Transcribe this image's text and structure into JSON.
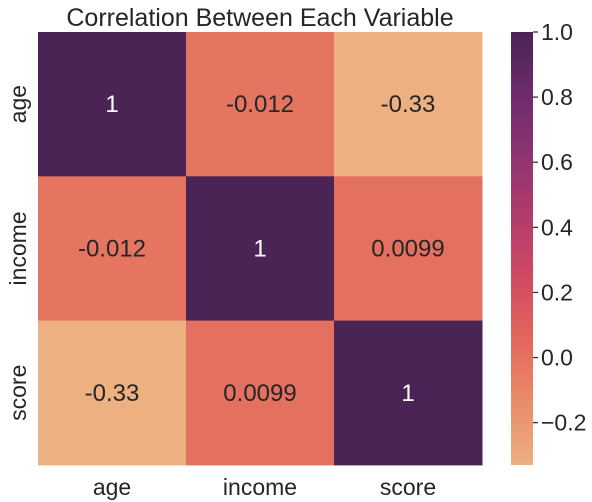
{
  "chart_data": {
    "type": "heatmap",
    "title": "Correlation Between Each Variable",
    "x_labels": [
      "age",
      "income",
      "score"
    ],
    "y_labels": [
      "age",
      "income",
      "score"
    ],
    "values": [
      [
        1,
        -0.012,
        -0.33
      ],
      [
        -0.012,
        1,
        0.0099
      ],
      [
        -0.33,
        0.0099,
        1
      ]
    ],
    "annotations": [
      [
        "1",
        "-0.012",
        "-0.33"
      ],
      [
        "-0.012",
        "1",
        "0.0099"
      ],
      [
        "-0.33",
        "0.0099",
        "1"
      ]
    ],
    "colorbar": {
      "min": -0.33,
      "max": 1.0,
      "ticks": [
        -0.2,
        0.0,
        0.2,
        0.4,
        0.6,
        0.8,
        1.0
      ],
      "tick_labels": [
        "−0.2",
        "0.0",
        "0.2",
        "0.4",
        "0.6",
        "0.8",
        "1.0"
      ],
      "colormap": "flare",
      "colors": [
        "#edb081",
        "#e98d6b",
        "#e3685c",
        "#d14a61",
        "#b13c6c",
        "#8f3371",
        "#6c2b6d",
        "#4a2455"
      ]
    },
    "legend": "right colorbar",
    "grid": false
  }
}
